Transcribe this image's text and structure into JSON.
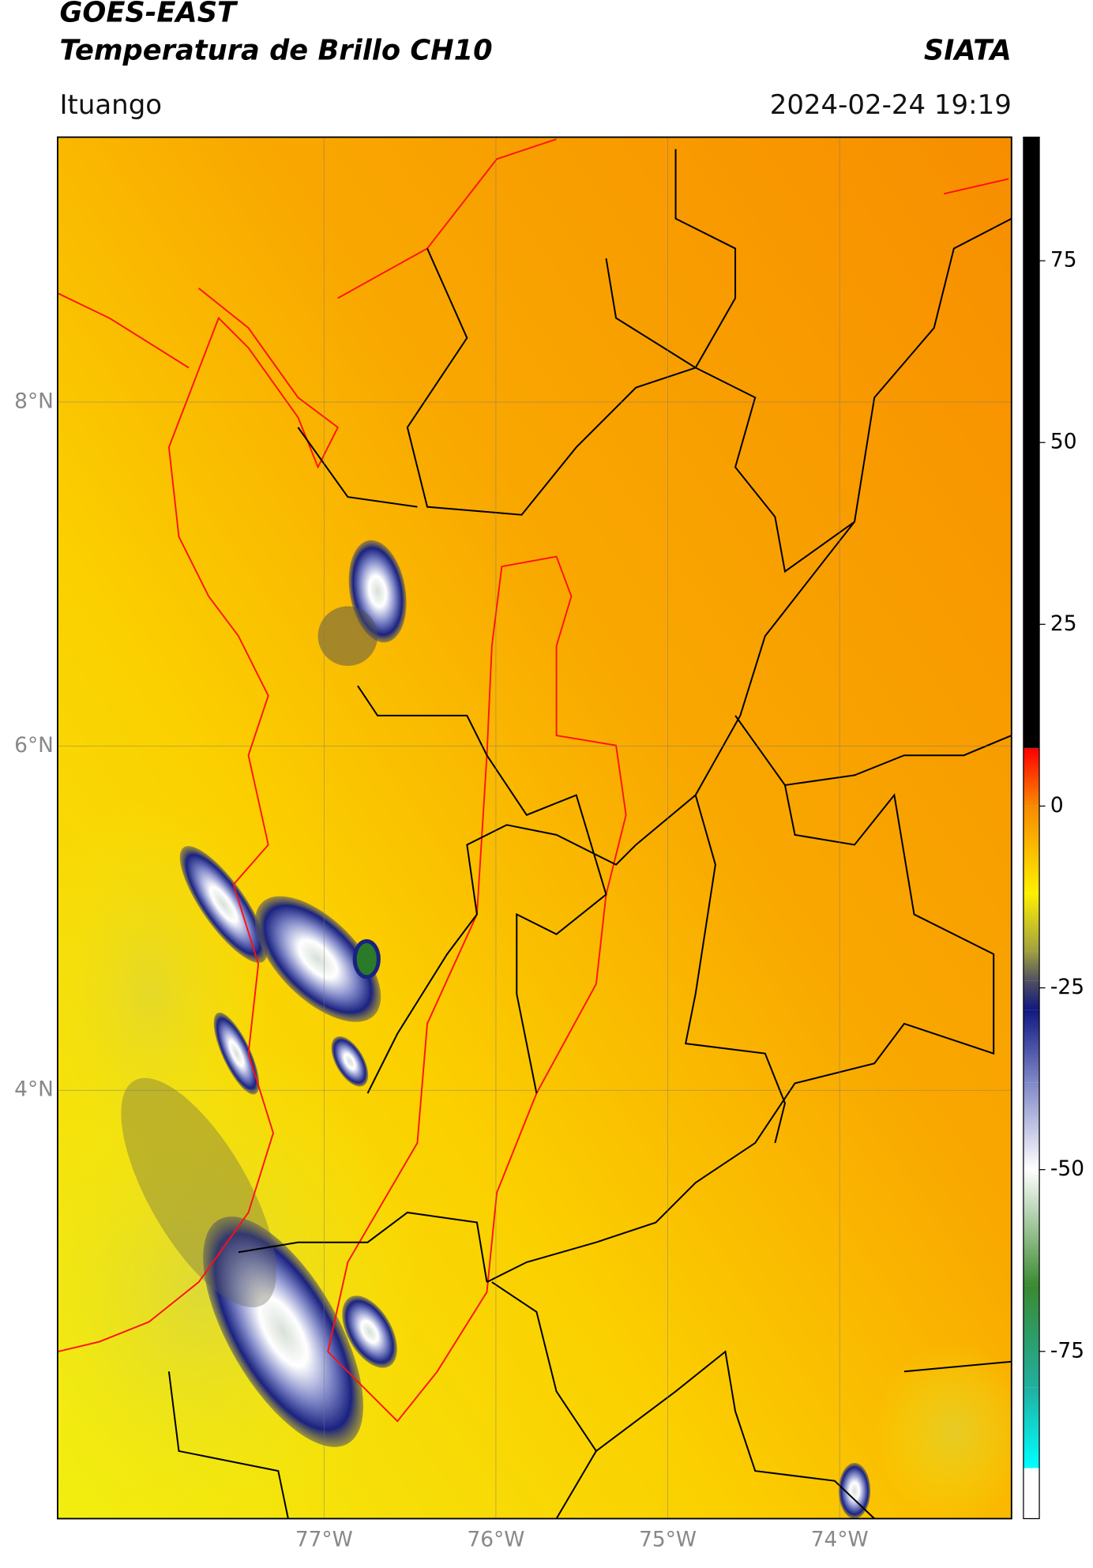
{
  "header": {
    "title": "GOES-EAST",
    "subtitle": "Temperatura de Brillo CH10",
    "brand": "SIATA",
    "location": "Ituango",
    "datetime": "2024-02-24 19:19"
  },
  "map": {
    "lat_range": [
      1.51,
      9.54
    ],
    "lon_range": [
      -78.55,
      -73.0
    ],
    "grid": true,
    "lat_ticks": [
      {
        "value": 8,
        "label": "8°N"
      },
      {
        "value": 6,
        "label": "6°N"
      },
      {
        "value": 4,
        "label": "4°N"
      }
    ],
    "lon_ticks": [
      {
        "value": -77,
        "label": "77°W"
      },
      {
        "value": -76,
        "label": "76°W"
      },
      {
        "value": -75,
        "label": "75°W"
      },
      {
        "value": -74,
        "label": "74°W"
      }
    ]
  },
  "colorbar": {
    "range": [
      -98,
      92
    ],
    "ticks": [
      75,
      50,
      25,
      0,
      -25,
      -50,
      -75
    ],
    "stops": [
      {
        "value": 92,
        "color": "#000000"
      },
      {
        "value": 8,
        "color": "#000000"
      },
      {
        "value": 7.9,
        "color": "#ff0000"
      },
      {
        "value": 0,
        "color": "#f78a00"
      },
      {
        "value": -12,
        "color": "#fff000"
      },
      {
        "value": -20,
        "color": "#a0a040"
      },
      {
        "value": -24,
        "color": "#505060"
      },
      {
        "value": -28,
        "color": "#101880"
      },
      {
        "value": -38,
        "color": "#8088c8"
      },
      {
        "value": -50,
        "color": "#ffffff"
      },
      {
        "value": -66,
        "color": "#3a8a30"
      },
      {
        "value": -80,
        "color": "#20b0a0"
      },
      {
        "value": -91,
        "color": "#00ffff"
      },
      {
        "value": -91.1,
        "color": "#ffffff"
      },
      {
        "value": -98,
        "color": "#ffffff"
      }
    ]
  }
}
